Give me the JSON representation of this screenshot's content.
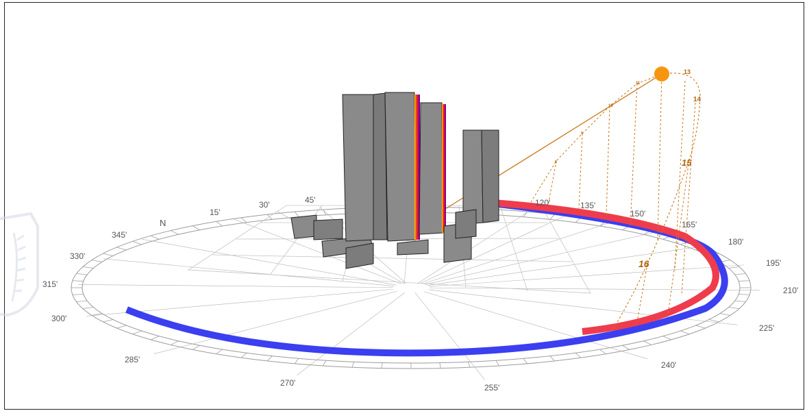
{
  "compass": {
    "north_label": "N",
    "bearings": [
      "15'",
      "30'",
      "45'",
      "120'",
      "135'",
      "150'",
      "165'",
      "180'",
      "195'",
      "210'",
      "225'",
      "240'",
      "255'",
      "270'",
      "285'",
      "300'",
      "315'",
      "330'",
      "345'"
    ]
  },
  "sun_path": {
    "hour_labels_major": [
      "13",
      "14",
      "15",
      "16"
    ],
    "hour_labels_minor": [
      "11",
      "10",
      "9",
      "8"
    ]
  },
  "colors": {
    "background": "#ffffff",
    "sun": "#f7960e",
    "sun_path": "#c8781a",
    "summer_arc": "#ef3c4c",
    "winter_arc": "#3b3ff0",
    "building_fill": "#8a8a8a",
    "building_edge": "#222222",
    "facade_heat_start": "#ff3a00",
    "facade_heat_end": "#4b00a8",
    "grid": "#bdbdbd",
    "watermark": "#d7dbe5"
  },
  "icons": {
    "sun": "sun-icon",
    "watermark": "emblem-watermark"
  }
}
